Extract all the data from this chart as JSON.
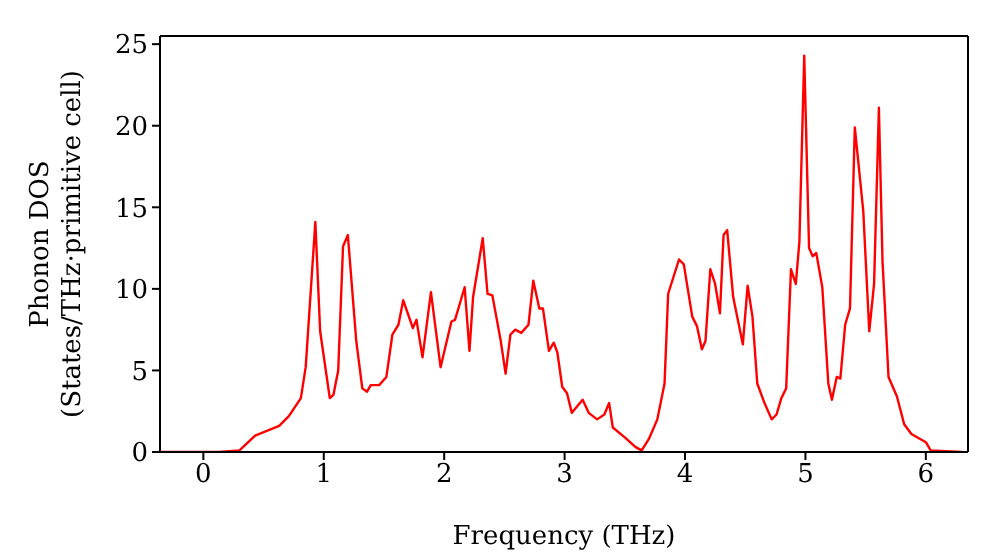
{
  "chart_data": {
    "type": "line",
    "xlabel": "Frequency (THz)",
    "ylabel": "Phonon DOS\n(States/THz·primitive cell)",
    "xlim": [
      -0.36,
      6.35
    ],
    "ylim": [
      0,
      25.5
    ],
    "xticks": [
      0,
      1,
      2,
      3,
      4,
      5,
      6
    ],
    "yticks": [
      0,
      5,
      10,
      15,
      20,
      25
    ],
    "legend": false,
    "marker": "none",
    "line_style": "solid",
    "series": [
      {
        "color": "#ff0000",
        "x": [
          -0.35,
          0.13,
          0.3,
          0.43,
          0.63,
          0.71,
          0.81,
          0.85,
          0.93,
          0.97,
          1.05,
          1.08,
          1.12,
          1.16,
          1.2,
          1.27,
          1.32,
          1.36,
          1.39,
          1.46,
          1.52,
          1.57,
          1.62,
          1.66,
          1.74,
          1.77,
          1.82,
          1.89,
          1.97,
          2.06,
          2.09,
          2.17,
          2.21,
          2.24,
          2.32,
          2.36,
          2.4,
          2.47,
          2.51,
          2.55,
          2.59,
          2.64,
          2.7,
          2.74,
          2.79,
          2.82,
          2.87,
          2.91,
          2.94,
          2.98,
          3.02,
          3.06,
          3.15,
          3.2,
          3.27,
          3.33,
          3.37,
          3.4,
          3.5,
          3.59,
          3.64,
          3.7,
          3.77,
          3.83,
          3.86,
          3.95,
          3.99,
          4.06,
          4.1,
          4.14,
          4.17,
          4.21,
          4.25,
          4.29,
          4.32,
          4.35,
          4.4,
          4.48,
          4.52,
          4.56,
          4.6,
          4.66,
          4.72,
          4.76,
          4.8,
          4.84,
          4.88,
          4.92,
          4.95,
          4.99,
          5.03,
          5.06,
          5.09,
          5.14,
          5.19,
          5.22,
          5.26,
          5.29,
          5.33,
          5.37,
          5.41,
          5.48,
          5.53,
          5.57,
          5.61,
          5.64,
          5.69,
          5.76,
          5.82,
          5.88,
          6.0,
          6.04,
          6.3
        ],
        "values": [
          0,
          0,
          0.1,
          1.0,
          1.6,
          2.2,
          3.3,
          5.2,
          14.1,
          7.4,
          3.3,
          3.5,
          5.0,
          12.6,
          13.3,
          6.8,
          3.9,
          3.7,
          4.1,
          4.1,
          4.6,
          7.2,
          7.8,
          9.3,
          7.6,
          8.1,
          5.8,
          9.8,
          5.2,
          8.0,
          8.1,
          10.1,
          6.2,
          9.5,
          13.1,
          9.7,
          9.6,
          6.8,
          4.8,
          7.2,
          7.5,
          7.3,
          7.8,
          10.5,
          8.8,
          8.8,
          6.2,
          6.7,
          6.1,
          4.0,
          3.6,
          2.4,
          3.2,
          2.4,
          2.0,
          2.3,
          3.0,
          1.5,
          0.9,
          0.3,
          0.1,
          0.8,
          2.0,
          4.2,
          9.7,
          11.8,
          11.5,
          8.3,
          7.7,
          6.3,
          6.8,
          11.2,
          10.3,
          8.5,
          13.3,
          13.6,
          9.5,
          6.6,
          10.2,
          8.3,
          4.2,
          3.0,
          2.0,
          2.3,
          3.3,
          3.9,
          11.2,
          10.3,
          12.9,
          24.3,
          12.5,
          12.0,
          12.2,
          10.1,
          4.2,
          3.2,
          4.6,
          4.5,
          7.8,
          8.8,
          19.9,
          14.8,
          7.4,
          10.3,
          21.1,
          11.7,
          4.6,
          3.4,
          1.7,
          1.1,
          0.6,
          0.1,
          0
        ]
      }
    ]
  }
}
